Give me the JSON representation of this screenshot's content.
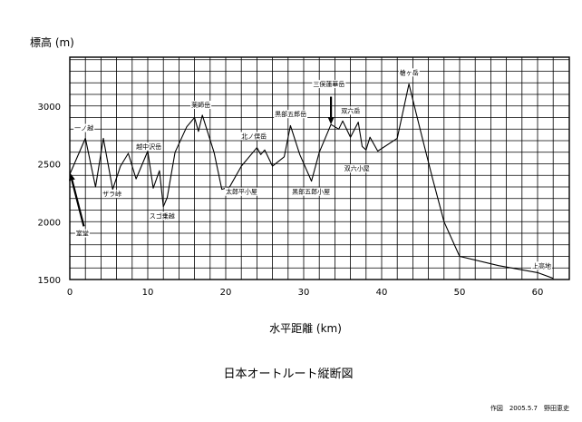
{
  "chart_data": {
    "type": "line",
    "title": "日本オートルート縦断図",
    "ylabel": "標高 (m)",
    "xlabel": "水平距離 (km)",
    "credit": "作図　2005.5.7　野田恵史",
    "xlim": [
      0,
      64
    ],
    "ylim": [
      1500,
      3500
    ],
    "x_major_ticks": [
      0,
      10,
      20,
      30,
      40,
      50,
      60
    ],
    "y_major_ticks": [
      1500,
      2000,
      2500,
      3000
    ],
    "x_tick_labels": [
      "0",
      "10",
      "20",
      "30",
      "40",
      "50",
      "60"
    ],
    "y_tick_labels": [
      "1500",
      "2000",
      "2500",
      "3000"
    ],
    "grid": true,
    "series": [
      {
        "x": [
          0,
          2,
          3.3,
          4.3,
          5.5,
          6.5,
          7.5,
          8.5,
          10,
          10.7,
          11.5,
          12,
          12.5,
          13.5,
          15,
          16,
          16.5,
          17,
          18.5,
          19.5,
          20.5,
          22,
          24,
          24.5,
          25,
          26,
          27.5,
          28.3,
          29.5,
          31,
          32,
          33.5,
          34.5,
          35,
          36,
          37,
          37.5,
          38,
          38.5,
          39.5,
          42,
          43.5,
          45,
          46.5,
          48,
          50,
          55,
          60,
          62
        ],
        "y": [
          2410,
          2720,
          2300,
          2720,
          2280,
          2480,
          2590,
          2370,
          2610,
          2290,
          2440,
          2130,
          2210,
          2600,
          2820,
          2900,
          2780,
          2920,
          2600,
          2280,
          2300,
          2480,
          2640,
          2580,
          2620,
          2480,
          2560,
          2830,
          2580,
          2350,
          2600,
          2840,
          2800,
          2870,
          2730,
          2860,
          2650,
          2620,
          2730,
          2610,
          2720,
          3190,
          2780,
          2380,
          2000,
          1700,
          1620,
          1560,
          1510
        ]
      }
    ],
    "annotations": [
      {
        "text": "一ノ越",
        "x": 0.6,
        "y": 2790
      },
      {
        "text": "ザラ峠",
        "x": 4.2,
        "y": 2220
      },
      {
        "text": "越中沢岳",
        "x": 8.5,
        "y": 2630
      },
      {
        "text": "スゴ乗越",
        "x": 10.2,
        "y": 2030
      },
      {
        "text": "薬師岳",
        "x": 15.6,
        "y": 2990
      },
      {
        "text": "北ノ俣岳",
        "x": 22,
        "y": 2720
      },
      {
        "text": "太郎平小屋",
        "x": 20,
        "y": 2240
      },
      {
        "text": "黒部五郎岳",
        "x": 26.3,
        "y": 2910
      },
      {
        "text": "黒部五郎小屋",
        "x": 28.5,
        "y": 2240
      },
      {
        "text": "三俣蓮華岳",
        "x": 31.2,
        "y": 3170
      },
      {
        "text": "双六岳",
        "x": 34.8,
        "y": 2940
      },
      {
        "text": "双六小屋",
        "x": 35.2,
        "y": 2440
      },
      {
        "text": "槍ヶ岳",
        "x": 42.3,
        "y": 3270
      },
      {
        "text": "室堂",
        "x": 0.8,
        "y": 1880
      },
      {
        "text": "上高地",
        "x": 59.3,
        "y": 1600
      }
    ],
    "arrows": [
      {
        "from": [
          1.8,
          1960
        ],
        "to": [
          0.05,
          2420
        ]
      },
      {
        "from": [
          33.5,
          3080
        ],
        "to": [
          33.5,
          2840
        ]
      }
    ]
  }
}
